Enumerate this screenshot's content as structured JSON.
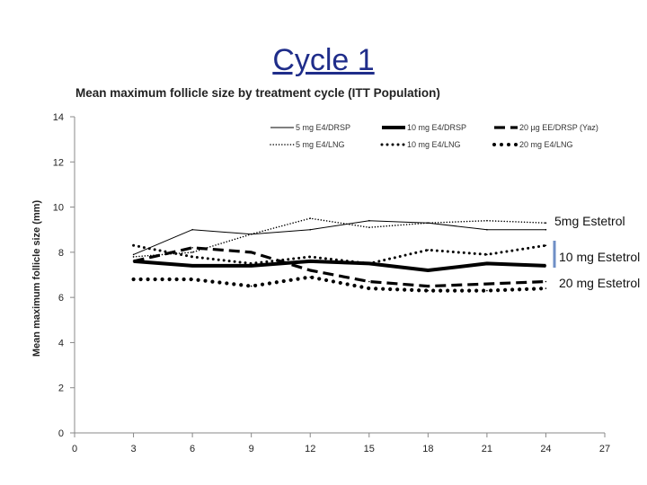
{
  "slide": {
    "title": "Cycle 1"
  },
  "chart_data": {
    "type": "line",
    "title": "Mean maximum follicle size by treatment cycle (ITT Population)",
    "ylabel": "Mean maximum follicle size (mm)",
    "xlabel": "",
    "xlim": [
      0,
      27
    ],
    "ylim": [
      0,
      14
    ],
    "x_ticks": [
      0,
      3,
      6,
      9,
      12,
      15,
      18,
      21,
      24,
      27
    ],
    "y_ticks": [
      0,
      2,
      4,
      6,
      8,
      10,
      12,
      14
    ],
    "grid": false,
    "legend_position": "top",
    "x": [
      3,
      6,
      9,
      12,
      15,
      18,
      21,
      24
    ],
    "series": [
      {
        "name": "5 mg E4/DRSP",
        "style": "thin-solid",
        "color": "#000000",
        "values": [
          7.9,
          9.0,
          8.8,
          9.0,
          9.4,
          9.3,
          9.0,
          9.0
        ]
      },
      {
        "name": "10 mg E4/DRSP",
        "style": "thick-solid",
        "color": "#000000",
        "values": [
          7.6,
          7.4,
          7.4,
          7.6,
          7.5,
          7.2,
          7.5,
          7.4
        ]
      },
      {
        "name": "20 µg EE/DRSP (Yaz)",
        "style": "thick-dash",
        "color": "#000000",
        "values": [
          7.6,
          8.2,
          8.0,
          7.2,
          6.7,
          6.5,
          6.6,
          6.7
        ]
      },
      {
        "name": "5 mg E4/LNG",
        "style": "thin-dot",
        "color": "#000000",
        "values": [
          7.8,
          8.0,
          8.8,
          9.5,
          9.1,
          9.3,
          9.4,
          9.3
        ]
      },
      {
        "name": "10 mg E4/LNG",
        "style": "medium-dot",
        "color": "#000000",
        "values": [
          8.3,
          7.8,
          7.5,
          7.8,
          7.5,
          8.1,
          7.9,
          8.3
        ]
      },
      {
        "name": "20 mg E4/LNG",
        "style": "thick-dot",
        "color": "#000000",
        "values": [
          6.8,
          6.8,
          6.5,
          6.9,
          6.4,
          6.3,
          6.3,
          6.4
        ]
      }
    ],
    "annotations": [
      "5mg Estetrol",
      "10 mg Estetrol",
      "20 mg Estetrol"
    ],
    "annotation_marker_color": "#6f8fc6"
  }
}
